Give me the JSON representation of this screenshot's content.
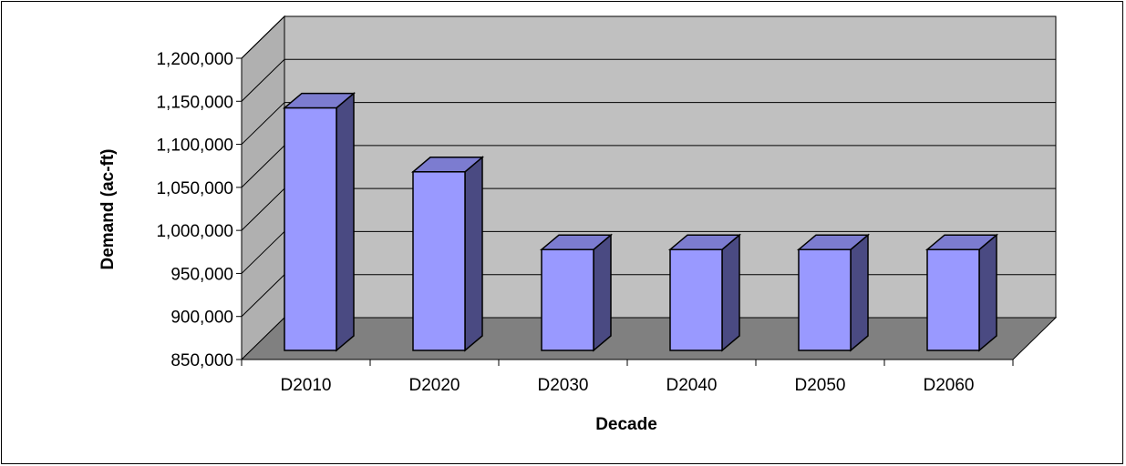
{
  "chart_data": {
    "type": "bar",
    "title": "",
    "xlabel": "Decade",
    "ylabel": "Demand (ac-ft)",
    "categories": [
      "D2010",
      "D2020",
      "D2030",
      "D2040",
      "D2050",
      "D2060"
    ],
    "values": [
      1165000,
      1082000,
      981000,
      981000,
      981000,
      981000
    ],
    "ylim": [
      850000,
      1200000
    ],
    "yticks": [
      850000,
      900000,
      950000,
      1000000,
      1050000,
      1100000,
      1150000,
      1200000
    ],
    "ytick_labels": [
      "850,000",
      "900,000",
      "950,000",
      "1,000,000",
      "1,050,000",
      "1,100,000",
      "1,150,000",
      "1,200,000"
    ],
    "grid": true,
    "legend": "none",
    "style": "3d-column",
    "colors": {
      "bar_front": "#9999ff",
      "bar_side": "#4a4a82",
      "bar_top": "#7c7cd0",
      "back_wall": "#c0c0c0",
      "side_wall": "#b0b0b0",
      "floor": "#808080"
    }
  }
}
